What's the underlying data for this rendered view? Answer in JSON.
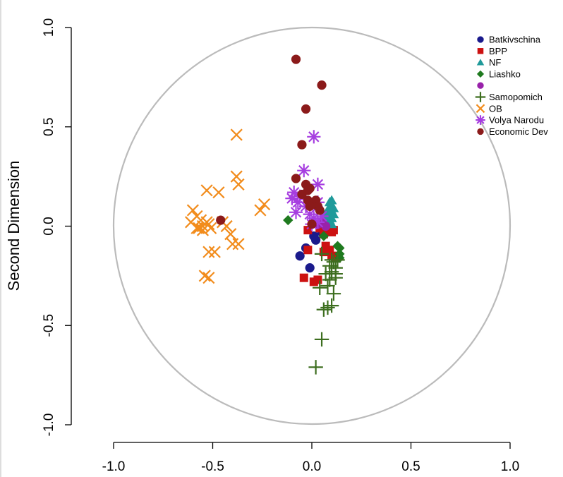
{
  "chart_data": {
    "type": "scatter",
    "xlim": [
      -1.0,
      1.0
    ],
    "ylim": [
      -1.0,
      1.0
    ],
    "xlabel": "",
    "ylabel": "Second Dimension",
    "x_ticks": [
      "-1.0",
      "-0.5",
      "0.0",
      "0.5",
      "1.0"
    ],
    "y_ticks": [
      "-1.0",
      "-0.5",
      "0.0",
      "0.5",
      "1.0"
    ],
    "unit_circle": true,
    "grid": false,
    "legend_position": "top-right",
    "series": [
      {
        "name": "Batkivschina",
        "marker": "circle",
        "color": "#1a1a8c",
        "points": [
          [
            -0.06,
            -0.15
          ],
          [
            -0.03,
            -0.11
          ],
          [
            -0.01,
            -0.21
          ],
          [
            0.02,
            -0.07
          ],
          [
            0.01,
            -0.05
          ],
          [
            0.05,
            -0.03
          ]
        ]
      },
      {
        "name": "BPP",
        "marker": "square",
        "color": "#cc1111",
        "points": [
          [
            -0.04,
            -0.26
          ],
          [
            0.01,
            -0.28
          ],
          [
            0.03,
            -0.27
          ],
          [
            -0.02,
            -0.12
          ],
          [
            0.06,
            -0.13
          ],
          [
            0.1,
            -0.15
          ],
          [
            0.12,
            -0.16
          ],
          [
            0.13,
            -0.15
          ],
          [
            0.09,
            -0.12
          ],
          [
            0.11,
            -0.02
          ],
          [
            0.08,
            -0.01
          ],
          [
            0.04,
            -0.01
          ],
          [
            -0.02,
            -0.02
          ],
          [
            0.06,
            -0.04
          ],
          [
            0.1,
            -0.03
          ],
          [
            0.07,
            -0.1
          ]
        ]
      },
      {
        "name": "NF",
        "marker": "triangle",
        "color": "#1f9a9a",
        "points": [
          [
            0.08,
            0.02
          ],
          [
            0.09,
            0.03
          ],
          [
            0.1,
            0.04
          ],
          [
            0.09,
            0.06
          ],
          [
            0.1,
            0.07
          ],
          [
            0.09,
            0.09
          ],
          [
            0.1,
            0.1
          ],
          [
            0.09,
            0.12
          ],
          [
            0.1,
            0.13
          ],
          [
            0.08,
            0.08
          ],
          [
            0.11,
            0.06
          ],
          [
            0.07,
            0.05
          ],
          [
            0.11,
            0.09
          ],
          [
            0.1,
            0.01
          ]
        ]
      },
      {
        "name": "Liashko",
        "marker": "diamond",
        "color": "#1f7a1f",
        "points": [
          [
            -0.12,
            0.03
          ],
          [
            0.13,
            -0.1
          ],
          [
            0.14,
            -0.11
          ],
          [
            0.14,
            -0.14
          ],
          [
            0.14,
            -0.16
          ],
          [
            0.06,
            -0.05
          ]
        ]
      },
      {
        "name": "",
        "marker": "circle",
        "color": "#9922aa",
        "points": [
          [
            0.05,
            0.02
          ],
          [
            0.03,
            0.01
          ],
          [
            0.07,
            0.0
          ]
        ]
      },
      {
        "name": "Samopomich",
        "marker": "plus",
        "color": "#3d6e1f",
        "points": [
          [
            0.02,
            -0.71
          ],
          [
            0.05,
            -0.57
          ],
          [
            0.06,
            -0.42
          ],
          [
            0.08,
            -0.41
          ],
          [
            0.1,
            -0.4
          ],
          [
            0.04,
            -0.31
          ],
          [
            0.08,
            -0.3
          ],
          [
            0.12,
            -0.26
          ],
          [
            0.1,
            -0.23
          ],
          [
            0.07,
            -0.24
          ],
          [
            0.09,
            -0.2
          ],
          [
            0.11,
            -0.18
          ],
          [
            0.13,
            -0.17
          ],
          [
            0.12,
            -0.21
          ],
          [
            0.09,
            -0.27
          ],
          [
            0.11,
            -0.34
          ],
          [
            0.05,
            -0.14
          ],
          [
            0.1,
            -0.17
          ],
          [
            0.12,
            -0.24
          ]
        ]
      },
      {
        "name": "OB",
        "marker": "x",
        "color": "#f28c1c",
        "points": [
          [
            -0.38,
            0.46
          ],
          [
            -0.38,
            0.25
          ],
          [
            -0.37,
            0.21
          ],
          [
            -0.24,
            0.11
          ],
          [
            -0.26,
            0.08
          ],
          [
            -0.53,
            0.18
          ],
          [
            -0.47,
            0.17
          ],
          [
            -0.6,
            0.08
          ],
          [
            -0.58,
            0.05
          ],
          [
            -0.61,
            0.02
          ],
          [
            -0.56,
            0.03
          ],
          [
            -0.55,
            0.0
          ],
          [
            -0.52,
            0.01
          ],
          [
            -0.58,
            -0.01
          ],
          [
            -0.55,
            -0.02
          ],
          [
            -0.51,
            -0.01
          ],
          [
            -0.45,
            0.02
          ],
          [
            -0.43,
            0.0
          ],
          [
            -0.41,
            -0.04
          ],
          [
            -0.4,
            -0.09
          ],
          [
            -0.37,
            -0.09
          ],
          [
            -0.52,
            -0.13
          ],
          [
            -0.49,
            -0.13
          ],
          [
            -0.54,
            -0.25
          ],
          [
            -0.52,
            -0.26
          ],
          [
            -0.53,
            0.02
          ],
          [
            -0.57,
            -0.01
          ]
        ]
      },
      {
        "name": "Volya Narodu",
        "marker": "asterisk",
        "color": "#a63de0",
        "points": [
          [
            0.01,
            0.45
          ],
          [
            -0.04,
            0.28
          ],
          [
            0.03,
            0.21
          ],
          [
            -0.09,
            0.17
          ],
          [
            -0.1,
            0.14
          ],
          [
            -0.07,
            0.12
          ],
          [
            -0.03,
            0.1
          ],
          [
            0.03,
            0.12
          ],
          [
            -0.08,
            0.07
          ],
          [
            -0.01,
            0.06
          ],
          [
            0.01,
            0.04
          ],
          [
            0.03,
            0.02
          ],
          [
            -0.06,
            0.15
          ],
          [
            0.0,
            0.01
          ],
          [
            0.05,
            0.05
          ]
        ]
      },
      {
        "name": "Economic Dev",
        "marker": "circle",
        "color": "#8b1a1a",
        "points": [
          [
            -0.08,
            0.84
          ],
          [
            0.05,
            0.71
          ],
          [
            -0.03,
            0.59
          ],
          [
            -0.05,
            0.41
          ],
          [
            -0.08,
            0.24
          ],
          [
            -0.03,
            0.21
          ],
          [
            -0.01,
            0.19
          ],
          [
            -0.02,
            0.18
          ],
          [
            -0.05,
            0.16
          ],
          [
            -0.02,
            0.13
          ],
          [
            0.02,
            0.13
          ],
          [
            0.03,
            0.1
          ],
          [
            -0.01,
            0.1
          ],
          [
            0.04,
            0.08
          ],
          [
            -0.46,
            0.03
          ],
          [
            0.0,
            0.01
          ]
        ]
      }
    ]
  }
}
